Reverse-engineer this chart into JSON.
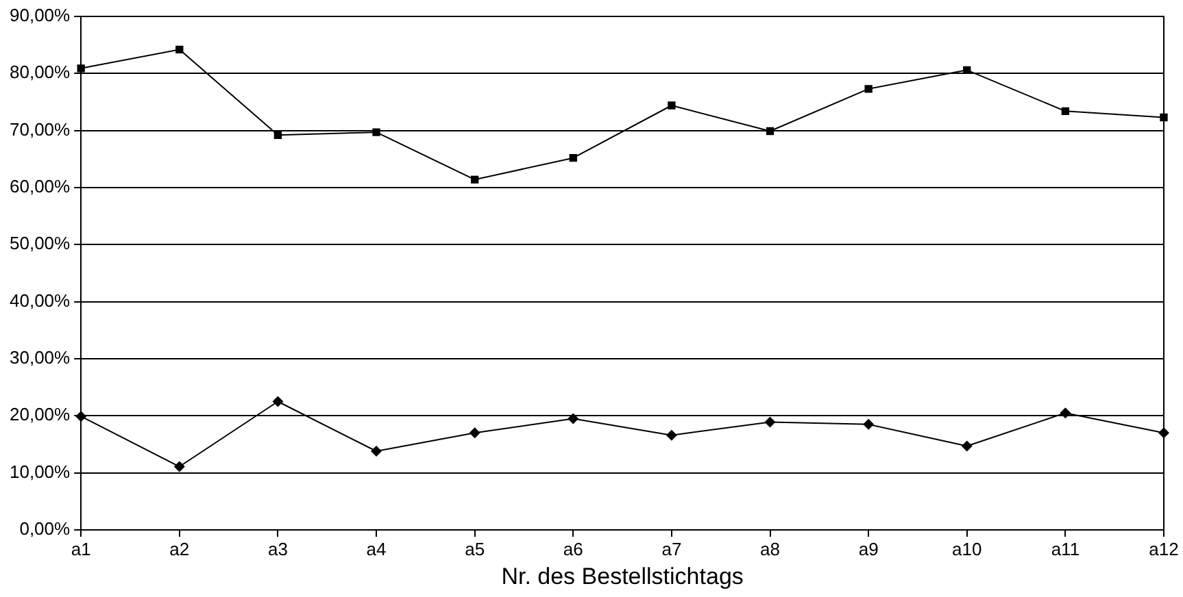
{
  "chart_data": {
    "type": "line",
    "xlabel": "Nr. des Bestellstichtags",
    "categories": [
      "a1",
      "a2",
      "a3",
      "a4",
      "a5",
      "a6",
      "a7",
      "a8",
      "a9",
      "a10",
      "a11",
      "a12"
    ],
    "series": [
      {
        "color": "#000000",
        "marker": "square",
        "values": [
          80.9,
          84.2,
          69.2,
          69.7,
          61.4,
          65.2,
          74.4,
          69.9,
          77.3,
          80.6,
          73.4,
          72.3
        ]
      },
      {
        "color": "#000000",
        "marker": "diamond",
        "values": [
          19.9,
          11.1,
          22.5,
          13.8,
          17.0,
          19.5,
          16.6,
          18.9,
          18.5,
          14.7,
          20.5,
          17.0
        ]
      }
    ],
    "ylim": [
      0,
      90
    ],
    "yticks": [
      {
        "value": 0,
        "label": "0,00%"
      },
      {
        "value": 10,
        "label": "10,00%"
      },
      {
        "value": 20,
        "label": "20,00%"
      },
      {
        "value": 30,
        "label": "30,00%"
      },
      {
        "value": 40,
        "label": "40,00%"
      },
      {
        "value": 50,
        "label": "50,00%"
      },
      {
        "value": 60,
        "label": "60,00%"
      },
      {
        "value": 70,
        "label": "70,00%"
      },
      {
        "value": 80,
        "label": "80,00%"
      },
      {
        "value": 90,
        "label": "90,00%"
      }
    ],
    "grid": "y",
    "legend": false,
    "line_style": "solid"
  }
}
